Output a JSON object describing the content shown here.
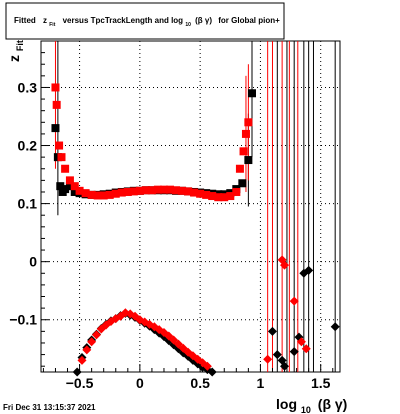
{
  "title": {
    "prefix": "Fitted",
    "z_main": "z",
    "z_sub": "Fit",
    "middle": "versus TpcTrackLength and log",
    "log_sub": "10",
    "paren": "(β  γ)",
    "suffix": "for Global pion+"
  },
  "timestamp": "Fri Dec 31 13:15:37 2021",
  "colors": {
    "black_series": "#000000",
    "red_series": "#ff0000",
    "grid": "#000000"
  },
  "chart_data": {
    "type": "scatter",
    "xlabel": {
      "main": "log",
      "sub": "10",
      "rest": "(β γ)"
    },
    "ylabel": {
      "main": "z",
      "sub": "Fit"
    },
    "xlim": [
      -0.82,
      1.66
    ],
    "ylim": [
      -0.19,
      0.38
    ],
    "xticks": [
      -0.5,
      0,
      0.5,
      1,
      1.5
    ],
    "xtick_labels": [
      "-0.5",
      "0",
      "0.5",
      "1",
      "1.5"
    ],
    "yticks": [
      -0.1,
      0,
      0.1,
      0.2,
      0.3
    ],
    "ytick_labels": [
      "-0.1",
      "0",
      "0.1",
      "0.2",
      "0.3"
    ],
    "grid": true,
    "series": [
      {
        "color": "#000000",
        "marker": "square",
        "points": [
          [
            -0.7,
            0.23
          ],
          [
            -0.68,
            0.18
          ],
          [
            -0.66,
            0.13
          ],
          [
            -0.64,
            0.12
          ],
          [
            -0.62,
            0.125
          ],
          [
            -0.58,
            0.13
          ],
          [
            -0.54,
            0.12
          ],
          [
            -0.5,
            0.118
          ],
          [
            -0.45,
            0.116
          ],
          [
            -0.4,
            0.115
          ],
          [
            -0.35,
            0.115
          ],
          [
            -0.3,
            0.116
          ],
          [
            -0.25,
            0.117
          ],
          [
            -0.2,
            0.119
          ],
          [
            -0.15,
            0.12
          ],
          [
            -0.1,
            0.121
          ],
          [
            -0.05,
            0.122
          ],
          [
            0.0,
            0.122
          ],
          [
            0.05,
            0.123
          ],
          [
            0.1,
            0.123
          ],
          [
            0.15,
            0.123
          ],
          [
            0.2,
            0.123
          ],
          [
            0.25,
            0.123
          ],
          [
            0.3,
            0.122
          ],
          [
            0.35,
            0.122
          ],
          [
            0.4,
            0.121
          ],
          [
            0.45,
            0.12
          ],
          [
            0.5,
            0.119
          ],
          [
            0.55,
            0.118
          ],
          [
            0.6,
            0.117
          ],
          [
            0.65,
            0.116
          ],
          [
            0.7,
            0.116
          ],
          [
            0.75,
            0.118
          ],
          [
            0.8,
            0.125
          ],
          [
            0.85,
            0.135
          ],
          [
            0.9,
            0.175
          ],
          [
            0.93,
            0.29
          ]
        ]
      },
      {
        "color": "#ff0000",
        "marker": "square",
        "points": [
          [
            -0.7,
            0.3
          ],
          [
            -0.69,
            0.27
          ],
          [
            -0.67,
            0.2
          ],
          [
            -0.65,
            0.18
          ],
          [
            -0.62,
            0.16
          ],
          [
            -0.58,
            0.14
          ],
          [
            -0.54,
            0.13
          ],
          [
            -0.5,
            0.122
          ],
          [
            -0.45,
            0.118
          ],
          [
            -0.4,
            0.115
          ],
          [
            -0.35,
            0.114
          ],
          [
            -0.3,
            0.114
          ],
          [
            -0.25,
            0.115
          ],
          [
            -0.2,
            0.117
          ],
          [
            -0.15,
            0.119
          ],
          [
            -0.1,
            0.12
          ],
          [
            -0.05,
            0.121
          ],
          [
            0.0,
            0.122
          ],
          [
            0.05,
            0.123
          ],
          [
            0.1,
            0.123
          ],
          [
            0.15,
            0.124
          ],
          [
            0.2,
            0.124
          ],
          [
            0.25,
            0.124
          ],
          [
            0.3,
            0.123
          ],
          [
            0.35,
            0.122
          ],
          [
            0.4,
            0.121
          ],
          [
            0.45,
            0.119
          ],
          [
            0.5,
            0.117
          ],
          [
            0.55,
            0.115
          ],
          [
            0.6,
            0.113
          ],
          [
            0.65,
            0.111
          ],
          [
            0.7,
            0.111
          ],
          [
            0.75,
            0.113
          ],
          [
            0.8,
            0.12
          ],
          [
            0.83,
            0.16
          ],
          [
            0.86,
            0.19
          ],
          [
            0.88,
            0.22
          ],
          [
            0.9,
            0.24
          ]
        ]
      },
      {
        "color": "#000000",
        "marker": "diamond",
        "points": [
          [
            -0.52,
            -0.19
          ],
          [
            -0.48,
            -0.165
          ],
          [
            -0.44,
            -0.148
          ],
          [
            -0.4,
            -0.135
          ],
          [
            -0.36,
            -0.125
          ],
          [
            -0.32,
            -0.115
          ],
          [
            -0.28,
            -0.108
          ],
          [
            -0.24,
            -0.102
          ],
          [
            -0.2,
            -0.098
          ],
          [
            -0.16,
            -0.093
          ],
          [
            -0.12,
            -0.089
          ],
          [
            -0.08,
            -0.092
          ],
          [
            -0.04,
            -0.096
          ],
          [
            0.0,
            -0.101
          ],
          [
            0.04,
            -0.106
          ],
          [
            0.08,
            -0.111
          ],
          [
            0.12,
            -0.117
          ],
          [
            0.16,
            -0.123
          ],
          [
            0.2,
            -0.129
          ],
          [
            0.24,
            -0.136
          ],
          [
            0.28,
            -0.143
          ],
          [
            0.32,
            -0.15
          ],
          [
            0.36,
            -0.157
          ],
          [
            0.4,
            -0.163
          ],
          [
            0.44,
            -0.17
          ],
          [
            0.48,
            -0.176
          ],
          [
            0.52,
            -0.182
          ],
          [
            0.56,
            -0.186
          ],
          [
            0.6,
            -0.19
          ],
          [
            1.1,
            -0.12
          ],
          [
            1.14,
            -0.16
          ],
          [
            1.18,
            -0.17
          ],
          [
            1.2,
            -0.18
          ],
          [
            1.28,
            -0.155
          ],
          [
            1.32,
            -0.13
          ],
          [
            1.36,
            -0.02
          ],
          [
            1.4,
            -0.015
          ],
          [
            1.62,
            -0.112
          ]
        ]
      },
      {
        "color": "#ff0000",
        "marker": "diamond",
        "points": [
          [
            -0.48,
            -0.17
          ],
          [
            -0.44,
            -0.152
          ],
          [
            -0.4,
            -0.138
          ],
          [
            -0.36,
            -0.126
          ],
          [
            -0.32,
            -0.116
          ],
          [
            -0.28,
            -0.109
          ],
          [
            -0.24,
            -0.103
          ],
          [
            -0.2,
            -0.098
          ],
          [
            -0.16,
            -0.094
          ],
          [
            -0.12,
            -0.088
          ],
          [
            -0.08,
            -0.09
          ],
          [
            -0.04,
            -0.094
          ],
          [
            0.0,
            -0.1
          ],
          [
            0.04,
            -0.104
          ],
          [
            0.08,
            -0.108
          ],
          [
            0.12,
            -0.112
          ],
          [
            0.16,
            -0.117
          ],
          [
            0.2,
            -0.122
          ],
          [
            0.24,
            -0.128
          ],
          [
            0.28,
            -0.135
          ],
          [
            0.32,
            -0.142
          ],
          [
            0.36,
            -0.149
          ],
          [
            0.4,
            -0.156
          ],
          [
            0.44,
            -0.162
          ],
          [
            0.48,
            -0.168
          ],
          [
            0.52,
            -0.174
          ],
          [
            0.56,
            -0.18
          ],
          [
            1.06,
            -0.168
          ],
          [
            1.18,
            0.003
          ],
          [
            1.2,
            -0.006
          ],
          [
            1.28,
            -0.068
          ],
          [
            1.34,
            -0.138
          ],
          [
            1.38,
            -0.15
          ]
        ]
      }
    ],
    "error_bars": [
      {
        "color": "#000000",
        "x": -0.68,
        "y": 0.23,
        "err": 0.15
      },
      {
        "color": "#ff0000",
        "x": -0.7,
        "y": 0.3,
        "err": 0.14
      },
      {
        "color": "#000000",
        "x": 0.93,
        "y": 0.29,
        "err": 0.11
      },
      {
        "color": "#000000",
        "x": 0.9,
        "y": 0.175,
        "err": 0.08
      },
      {
        "color": "#ff0000",
        "x": 0.88,
        "y": 0.22,
        "err": 0.1
      },
      {
        "color": "#ff0000",
        "x": 0.9,
        "y": 0.24,
        "err": 0.1
      },
      {
        "color": "#ff0000",
        "x": 1.06,
        "y": -0.168,
        "err": 0.6
      },
      {
        "color": "#ff0000",
        "x": 1.1,
        "y": 0.0,
        "err": 0.6
      },
      {
        "color": "#000000",
        "x": 1.14,
        "y": 0.0,
        "err": 0.6
      },
      {
        "color": "#ff0000",
        "x": 1.18,
        "y": 0.003,
        "err": 0.6
      },
      {
        "color": "#000000",
        "x": 1.22,
        "y": 0.0,
        "err": 0.6
      },
      {
        "color": "#ff0000",
        "x": 1.24,
        "y": 0.0,
        "err": 0.6
      },
      {
        "color": "#000000",
        "x": 1.28,
        "y": 0.0,
        "err": 0.6
      },
      {
        "color": "#ff0000",
        "x": 1.31,
        "y": 0.0,
        "err": 0.6
      },
      {
        "color": "#000000",
        "x": 1.36,
        "y": 0.0,
        "err": 0.6
      },
      {
        "color": "#000000",
        "x": 1.4,
        "y": 0.0,
        "err": 0.6
      },
      {
        "color": "#000000",
        "x": 1.44,
        "y": 0.0,
        "err": 0.6
      },
      {
        "color": "#000000",
        "x": 1.62,
        "y": -0.112,
        "err": 0.6
      }
    ]
  }
}
